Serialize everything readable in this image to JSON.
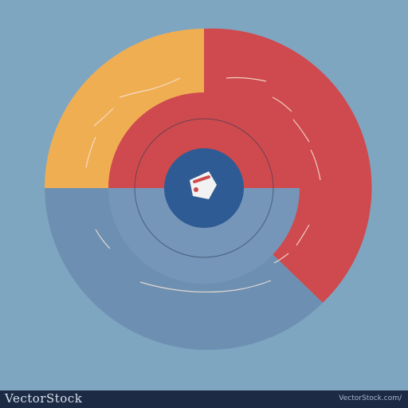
{
  "colors": {
    "background": "#7fa6c1",
    "orange": "#f0ae53",
    "red": "#cf4a4e",
    "ring_blue": "#6d90b2",
    "inner_blue": "#7596b8",
    "center": "#2f5b94",
    "center_icon": "#f2f2f2",
    "footer": "#1d2a44"
  },
  "center_icon": "mark-icon",
  "watermark": {
    "brand": "VectorStock",
    "id": "VectorStock.com/"
  }
}
